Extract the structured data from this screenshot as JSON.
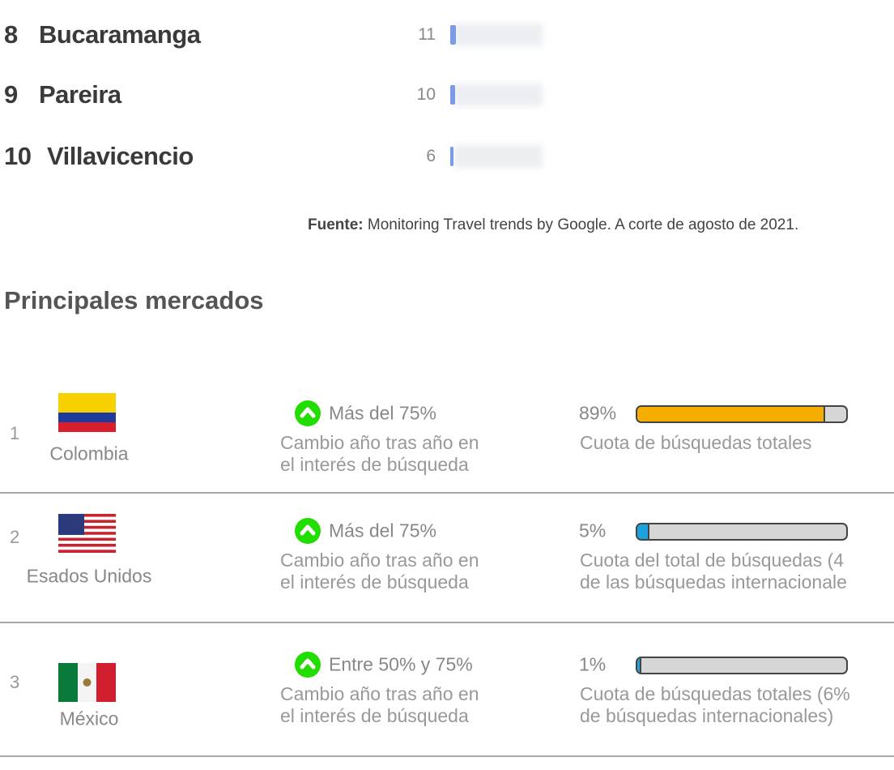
{
  "cities": [
    {
      "rank": 8,
      "name": "Bucaramanga",
      "value": 11
    },
    {
      "rank": 9,
      "name": "Pareira",
      "value": 10
    },
    {
      "rank": 10,
      "name": "Villavicencio",
      "value": 6
    }
  ],
  "source": {
    "label": "Fuente:",
    "text": "Monitoring Travel trends by Google. A corte de agosto de 2021."
  },
  "heading": "Principales mercados",
  "markets": [
    {
      "rank": 1,
      "country": "Colombia",
      "change": "Más del 75%",
      "change_desc": [
        "Cambio año tras año en",
        "el interés de búsqueda"
      ],
      "share": 89,
      "share_label": "89%",
      "share_desc": [
        "Cuota de búsquedas totales"
      ],
      "color": "#f5ad00"
    },
    {
      "rank": 2,
      "country": "Esados Unidos",
      "change": "Más del 75%",
      "change_desc": [
        "Cambio año tras año en",
        "el interés de búsqueda"
      ],
      "share": 5,
      "share_label": "5%",
      "share_desc": [
        "Cuota del total de búsquedas (4",
        "de las búsquedas internacionale"
      ],
      "color": "#1ca3dd"
    },
    {
      "rank": 3,
      "country": "México",
      "change": "Entre 50% y 75%",
      "change_desc": [
        "Cambio año tras año en",
        "el interés de búsqueda"
      ],
      "share": 1,
      "share_label": "1%",
      "share_desc": [
        "Cuota de búsquedas totales (6%",
        "de búsquedas internacionales)"
      ],
      "color": "#1ca3dd"
    }
  ]
}
